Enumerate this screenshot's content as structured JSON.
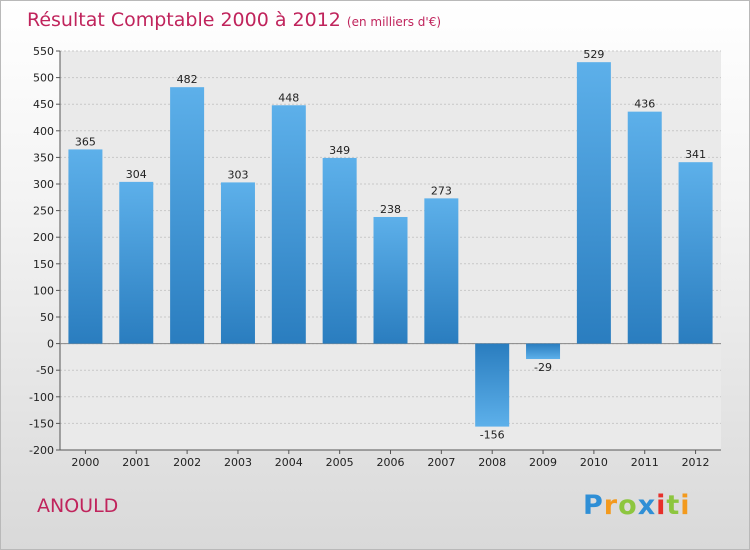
{
  "title": {
    "main": "Résultat Comptable 2000 à 2012",
    "sub": "(en milliers d'€)"
  },
  "commune": "ANOULD",
  "logo": {
    "letters": [
      "P",
      "r",
      "o",
      "x",
      "i",
      "t",
      "i"
    ],
    "colors": [
      "#2f8fd6",
      "#f39a1d",
      "#8dc63f",
      "#2f8fd6",
      "#e7302a",
      "#8dc63f",
      "#f39a1d"
    ]
  },
  "chart_data": {
    "type": "bar",
    "title": "Résultat Comptable 2000 à 2012",
    "subtitle": "(en milliers d'€)",
    "xlabel": "",
    "ylabel": "",
    "categories": [
      "2000",
      "2001",
      "2002",
      "2003",
      "2004",
      "2005",
      "2006",
      "2007",
      "2008",
      "2009",
      "2010",
      "2011",
      "2012"
    ],
    "values": [
      365,
      304,
      482,
      303,
      448,
      349,
      238,
      273,
      -156,
      -29,
      529,
      436,
      341
    ],
    "ylim": [
      -200,
      550
    ],
    "yticks": [
      -200,
      -150,
      -100,
      -50,
      0,
      50,
      100,
      150,
      200,
      250,
      300,
      350,
      400,
      450,
      500,
      550
    ],
    "grid": true,
    "bar_color_light": "#5aaee8",
    "bar_color_dark": "#2c7fc1"
  }
}
